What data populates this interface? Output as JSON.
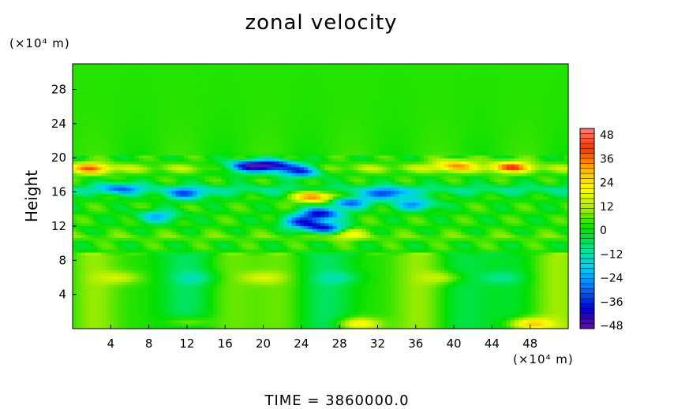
{
  "chart_data": {
    "type": "heatmap",
    "title": "zonal velocity",
    "ylabel": "Height",
    "xlabel": "",
    "x_unit": "(×10⁴ m)",
    "y_unit": "(×10⁴ m)",
    "xlim": [
      0,
      52
    ],
    "ylim": [
      0,
      31
    ],
    "x_ticks": [
      4,
      8,
      12,
      16,
      20,
      24,
      28,
      32,
      36,
      40,
      44,
      48
    ],
    "y_ticks": [
      4,
      8,
      12,
      16,
      20,
      24,
      28
    ],
    "colorbar": {
      "range": [
        -48,
        48
      ],
      "tick_labels": [
        "48",
        "36",
        "24",
        "12",
        "0",
        "−12",
        "−24",
        "−36",
        "−48"
      ],
      "colors": [
        "#6a0dad",
        "#0000cc",
        "#0070ff",
        "#00d0ff",
        "#00e68a",
        "#00e000",
        "#aaee00",
        "#ffff00",
        "#ffb000",
        "#ff3000",
        "#ff8080"
      ]
    },
    "features": [
      {
        "x": 21,
        "y": 19.1,
        "value": -46
      },
      {
        "x": 18,
        "y": 19.0,
        "value": -40
      },
      {
        "x": 24,
        "y": 18.5,
        "value": -36
      },
      {
        "x": 25.5,
        "y": 15.5,
        "value": 34
      },
      {
        "x": 26,
        "y": 13.5,
        "value": -40
      },
      {
        "x": 26.5,
        "y": 11.8,
        "value": -38
      },
      {
        "x": 24,
        "y": 12.5,
        "value": -30
      },
      {
        "x": 29,
        "y": 14.8,
        "value": -30
      },
      {
        "x": 33,
        "y": 15.8,
        "value": -30
      },
      {
        "x": 36,
        "y": 14.6,
        "value": -26
      },
      {
        "x": 12,
        "y": 15.8,
        "value": -26
      },
      {
        "x": 5,
        "y": 16.5,
        "value": -22
      },
      {
        "x": 9,
        "y": 13.2,
        "value": -22
      },
      {
        "x": 46,
        "y": 19.0,
        "value": 28
      },
      {
        "x": 40,
        "y": 19.2,
        "value": 24
      },
      {
        "x": 2,
        "y": 18.8,
        "value": 24
      },
      {
        "x": 28.5,
        "y": 11.2,
        "value": 18
      },
      {
        "x": 5,
        "y": 6,
        "value": 10
      },
      {
        "x": 20,
        "y": 6,
        "value": 10
      },
      {
        "x": 39,
        "y": 6,
        "value": 10
      },
      {
        "x": 13,
        "y": 6,
        "value": -8
      },
      {
        "x": 28,
        "y": 6,
        "value": -8
      },
      {
        "x": 45,
        "y": 6,
        "value": -8
      },
      {
        "x": 30,
        "y": 0.6,
        "value": 20
      },
      {
        "x": 48,
        "y": 0.6,
        "value": 24
      },
      {
        "x": 12,
        "y": 0.8,
        "value": 12
      }
    ]
  },
  "footer": {
    "time_label": "TIME  =  3860000.0"
  }
}
